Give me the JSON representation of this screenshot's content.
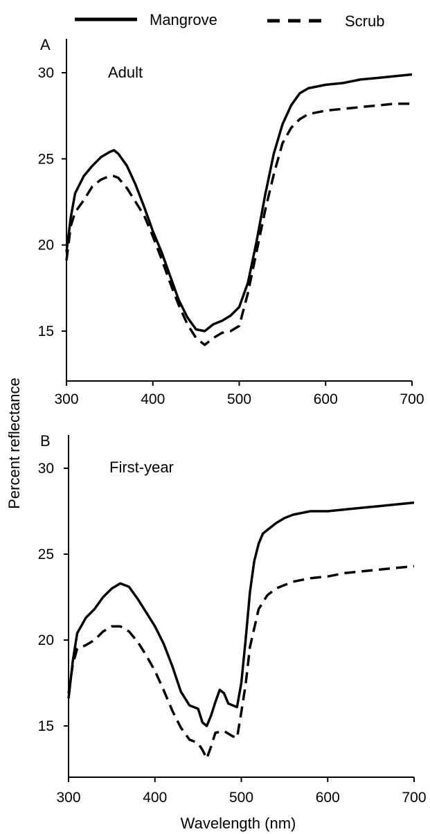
{
  "legend": {
    "items": [
      {
        "label": "Mangrove",
        "style": "solid"
      },
      {
        "label": "Scrub",
        "style": "dashed"
      }
    ]
  },
  "ylabel": "Percent reflectance",
  "xlabel": "Wavelength (nm)",
  "chart_data": [
    {
      "type": "line",
      "panel_letter": "A",
      "annotation": "Adult",
      "x_ticks": [
        "300",
        "400",
        "500",
        "600",
        "700"
      ],
      "y_ticks": [
        "15",
        "20",
        "25",
        "30"
      ],
      "xlim": [
        300,
        700
      ],
      "ylim": [
        12,
        32
      ],
      "series": [
        {
          "name": "Mangrove",
          "style": "solid",
          "x": [
            300,
            305,
            310,
            320,
            330,
            340,
            350,
            355,
            360,
            370,
            380,
            390,
            400,
            410,
            420,
            430,
            440,
            450,
            460,
            470,
            475,
            480,
            490,
            500,
            510,
            520,
            530,
            540,
            550,
            560,
            570,
            580,
            590,
            600,
            620,
            640,
            660,
            680,
            700
          ],
          "y": [
            19.6,
            21.6,
            23.0,
            24.0,
            24.6,
            25.1,
            25.4,
            25.5,
            25.3,
            24.6,
            23.5,
            22.2,
            20.8,
            19.6,
            18.2,
            16.8,
            15.8,
            15.1,
            15.0,
            15.4,
            15.5,
            15.6,
            15.9,
            16.4,
            17.8,
            20.2,
            22.9,
            25.3,
            27.0,
            28.1,
            28.8,
            29.1,
            29.2,
            29.3,
            29.4,
            29.6,
            29.7,
            29.8,
            29.9
          ]
        },
        {
          "name": "Scrub",
          "style": "dashed",
          "x": [
            300,
            305,
            310,
            320,
            330,
            340,
            350,
            355,
            360,
            370,
            380,
            390,
            400,
            410,
            420,
            430,
            440,
            450,
            460,
            470,
            480,
            490,
            500,
            510,
            520,
            530,
            540,
            550,
            560,
            570,
            580,
            600,
            620,
            640,
            660,
            680,
            700
          ],
          "y": [
            19.1,
            21.1,
            21.9,
            22.6,
            23.4,
            23.8,
            24.0,
            24.0,
            23.9,
            23.3,
            22.5,
            21.7,
            20.5,
            19.2,
            17.8,
            16.5,
            15.4,
            14.6,
            14.2,
            14.6,
            14.9,
            15.0,
            15.3,
            17.2,
            19.6,
            22.0,
            24.1,
            25.9,
            26.8,
            27.3,
            27.6,
            27.8,
            27.9,
            28.0,
            28.1,
            28.2,
            28.2
          ]
        }
      ]
    },
    {
      "type": "line",
      "panel_letter": "B",
      "annotation": "First-year",
      "x_ticks": [
        "300",
        "400",
        "500",
        "600",
        "700"
      ],
      "y_ticks": [
        "15",
        "20",
        "25",
        "30"
      ],
      "xlim": [
        300,
        700
      ],
      "ylim": [
        12,
        32
      ],
      "series": [
        {
          "name": "Mangrove",
          "style": "solid",
          "x": [
            300,
            305,
            310,
            320,
            330,
            340,
            350,
            360,
            370,
            380,
            390,
            400,
            410,
            420,
            430,
            440,
            450,
            455,
            460,
            465,
            470,
            475,
            480,
            485,
            490,
            495,
            500,
            505,
            510,
            515,
            520,
            525,
            530,
            540,
            550,
            560,
            580,
            600,
            620,
            640,
            660,
            680,
            700
          ],
          "y": [
            16.6,
            18.8,
            20.4,
            21.3,
            21.8,
            22.5,
            23.0,
            23.3,
            23.1,
            22.4,
            21.6,
            20.8,
            19.8,
            18.5,
            17.0,
            16.2,
            16.0,
            15.2,
            15.0,
            15.6,
            16.4,
            17.1,
            16.9,
            16.3,
            16.2,
            16.1,
            17.5,
            20.0,
            22.8,
            24.6,
            25.6,
            26.2,
            26.4,
            26.8,
            27.1,
            27.3,
            27.5,
            27.5,
            27.6,
            27.7,
            27.8,
            27.9,
            28.0
          ]
        },
        {
          "name": "Scrub",
          "style": "dashed",
          "x": [
            300,
            305,
            310,
            320,
            330,
            340,
            350,
            360,
            370,
            380,
            390,
            400,
            410,
            420,
            430,
            440,
            450,
            455,
            460,
            465,
            470,
            480,
            490,
            495,
            500,
            505,
            510,
            520,
            530,
            540,
            550,
            560,
            580,
            600,
            620,
            640,
            660,
            680,
            700
          ],
          "y": [
            16.9,
            18.6,
            19.5,
            19.7,
            20.0,
            20.5,
            20.8,
            20.8,
            20.5,
            19.9,
            19.1,
            18.2,
            17.1,
            15.9,
            14.9,
            14.2,
            14.0,
            13.6,
            13.1,
            13.8,
            14.6,
            14.7,
            14.4,
            14.3,
            15.8,
            17.4,
            19.6,
            21.8,
            22.6,
            23.0,
            23.2,
            23.4,
            23.6,
            23.7,
            23.9,
            24.0,
            24.1,
            24.2,
            24.3
          ]
        }
      ]
    }
  ]
}
